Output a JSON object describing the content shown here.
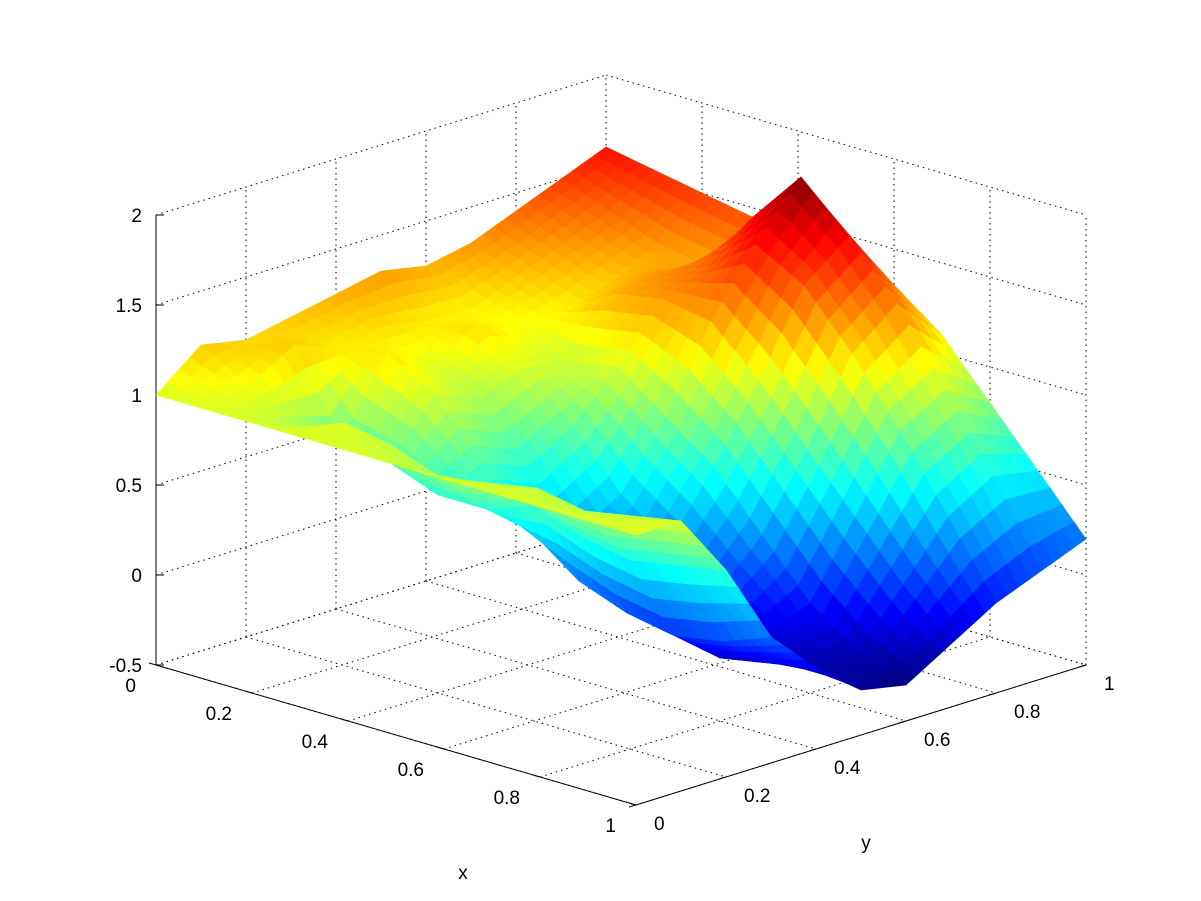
{
  "chart_data": {
    "type": "surface",
    "xlabel": "x",
    "ylabel": "y",
    "zlabel": "",
    "xlim": [
      0,
      1
    ],
    "ylim": [
      0,
      1
    ],
    "zlim": [
      -0.5,
      2
    ],
    "x_ticks": [
      "0",
      "0.2",
      "0.4",
      "0.6",
      "0.8",
      "1"
    ],
    "y_ticks": [
      "0",
      "0.2",
      "0.4",
      "0.6",
      "0.8",
      "1"
    ],
    "z_ticks": [
      "-0.5",
      "0",
      "0.5",
      "1",
      "1.5",
      "2"
    ],
    "grid": true,
    "colormap": "jet",
    "x": [
      0,
      0.1,
      0.2,
      0.3,
      0.4,
      0.5,
      0.6,
      0.7,
      0.8,
      0.9,
      1.0
    ],
    "y": [
      0,
      0.1,
      0.2,
      0.3,
      0.4,
      0.5,
      0.6,
      0.7,
      0.8,
      0.9,
      1.0
    ],
    "z_rows_by_y": [
      [
        1.0,
        1.0,
        1.0,
        1.0,
        1.0,
        1.0,
        1.0,
        1.0,
        1.0,
        1.0,
        1.0
      ],
      [
        1.2,
        1.05,
        0.9,
        1.0,
        0.95,
        0.85,
        0.9,
        0.95,
        0.9,
        0.95,
        1.0
      ],
      [
        1.15,
        1.2,
        0.75,
        0.7,
        0.6,
        0.6,
        0.7,
        0.6,
        0.55,
        0.6,
        0.65
      ],
      [
        1.2,
        1.1,
        1.15,
        1.0,
        0.7,
        0.4,
        0.2,
        0.1,
        0.05,
        0.1,
        0.2
      ],
      [
        1.25,
        1.15,
        1.0,
        0.9,
        0.6,
        0.3,
        0.1,
        -0.05,
        -0.15,
        -0.1,
        -0.05
      ],
      [
        1.3,
        1.1,
        1.15,
        1.0,
        0.75,
        0.45,
        0.25,
        0.05,
        -0.1,
        -0.2,
        -0.25
      ],
      [
        1.25,
        1.1,
        1.05,
        0.95,
        1.0,
        0.8,
        0.6,
        0.3,
        0.0,
        -0.2,
        -0.3
      ],
      [
        1.3,
        1.2,
        1.1,
        1.25,
        1.3,
        1.25,
        1.0,
        0.7,
        0.4,
        0.1,
        -0.15
      ],
      [
        1.4,
        1.3,
        1.2,
        1.3,
        1.4,
        1.6,
        1.45,
        1.15,
        0.8,
        0.4,
        0.0
      ],
      [
        1.5,
        1.4,
        1.3,
        1.25,
        1.6,
        1.9,
        1.65,
        1.35,
        0.95,
        0.55,
        0.1
      ],
      [
        1.6,
        1.55,
        1.5,
        1.45,
        1.45,
        1.5,
        1.3,
        1.1,
        0.8,
        0.5,
        0.2
      ]
    ]
  }
}
